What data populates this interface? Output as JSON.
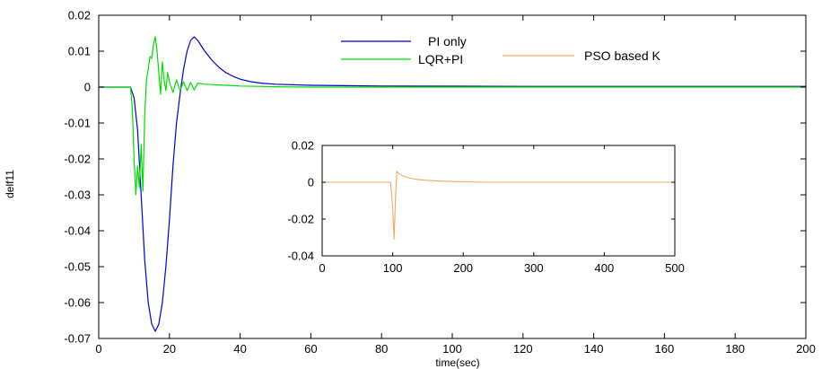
{
  "chart_data": [
    {
      "type": "line",
      "title": "",
      "xlabel": "time(sec)",
      "ylabel": "delf11",
      "xlim": [
        0,
        200
      ],
      "ylim": [
        -0.07,
        0.02
      ],
      "xticks": [
        0,
        20,
        40,
        60,
        80,
        100,
        120,
        140,
        160,
        180,
        200
      ],
      "xtick_labels": [
        "0",
        "20",
        "40",
        "60",
        "80",
        "100",
        "120",
        "140",
        "160",
        "180",
        "200"
      ],
      "yticks": [
        0.02,
        0.01,
        0,
        -0.01,
        -0.02,
        -0.03,
        -0.04,
        -0.05,
        -0.06,
        -0.07
      ],
      "ytick_labels": [
        "0.02",
        "0.01",
        "0",
        "-0.01",
        "-0.02",
        "-0.03",
        "-0.04",
        "-0.05",
        "-0.06",
        "-0.07"
      ],
      "grid": false,
      "legend_position": "top-right",
      "series": [
        {
          "name": "PI only",
          "color": "#0000cc",
          "x": [
            0,
            9,
            10,
            11,
            12,
            13,
            14,
            15,
            16,
            17,
            18,
            19,
            20,
            21,
            22,
            23,
            24,
            25,
            26,
            27,
            28,
            29,
            30,
            32,
            34,
            36,
            38,
            40,
            43,
            46,
            50,
            60,
            80,
            120,
            160,
            200
          ],
          "y": [
            0,
            0,
            -0.003,
            -0.012,
            -0.03,
            -0.048,
            -0.06,
            -0.066,
            -0.068,
            -0.066,
            -0.06,
            -0.05,
            -0.037,
            -0.022,
            -0.01,
            -0.002,
            0.005,
            0.01,
            0.013,
            0.014,
            0.013,
            0.0115,
            0.01,
            0.0075,
            0.0055,
            0.004,
            0.003,
            0.0022,
            0.0015,
            0.0011,
            0.0008,
            0.0005,
            0.0003,
            0.0002,
            0.0002,
            0.0002
          ]
        },
        {
          "name": "LQR+PI",
          "color": "#00dd00",
          "x": [
            0,
            9,
            9.5,
            10,
            10.5,
            11,
            11.5,
            12,
            12.5,
            13,
            13.5,
            14,
            14.5,
            15,
            15.5,
            16,
            16.5,
            17,
            17.5,
            18,
            18.5,
            19,
            19.5,
            20,
            21,
            22,
            23,
            24,
            25,
            26,
            27,
            28,
            30,
            32,
            34,
            36,
            38,
            40,
            45,
            50,
            60,
            200
          ],
          "y": [
            0,
            0,
            -0.006,
            -0.02,
            -0.03,
            -0.022,
            -0.028,
            -0.016,
            -0.029,
            -0.008,
            0.002,
            0.005,
            0.0085,
            0.008,
            0.012,
            0.014,
            0.01,
            0.004,
            -0.002,
            0.007,
            0.002,
            -0.001,
            0.004,
            0.0015,
            -0.0015,
            0.002,
            -0.001,
            0.0015,
            -0.001,
            0.0013,
            -0.0008,
            0.0011,
            0.0008,
            0.0007,
            0.0006,
            0.0005,
            0.0004,
            0.0003,
            0.0002,
            0.0001,
            0,
            0
          ]
        }
      ]
    },
    {
      "type": "line",
      "title": "",
      "xlabel": "",
      "ylabel": "",
      "xlim": [
        0,
        500
      ],
      "ylim": [
        -0.04,
        0.02
      ],
      "xticks": [
        0,
        100,
        200,
        300,
        400,
        500
      ],
      "xtick_labels": [
        "0",
        "100",
        "200",
        "300",
        "400",
        "500"
      ],
      "yticks": [
        0.02,
        0,
        -0.02,
        -0.04
      ],
      "ytick_labels": [
        "0.02",
        "0",
        "-0.02",
        "-0.04"
      ],
      "grid": false,
      "series": [
        {
          "name": "PSO based K",
          "color": "#f5a860",
          "x": [
            0,
            97,
            100,
            102,
            104,
            106,
            108,
            112,
            118,
            125,
            135,
            150,
            170,
            200,
            230,
            500
          ],
          "y": [
            0,
            0,
            -0.014,
            -0.031,
            -0.008,
            0.006,
            0.005,
            0.004,
            0.003,
            0.0022,
            0.0015,
            0.001,
            0.0006,
            0.0003,
            0,
            0
          ]
        }
      ]
    }
  ]
}
